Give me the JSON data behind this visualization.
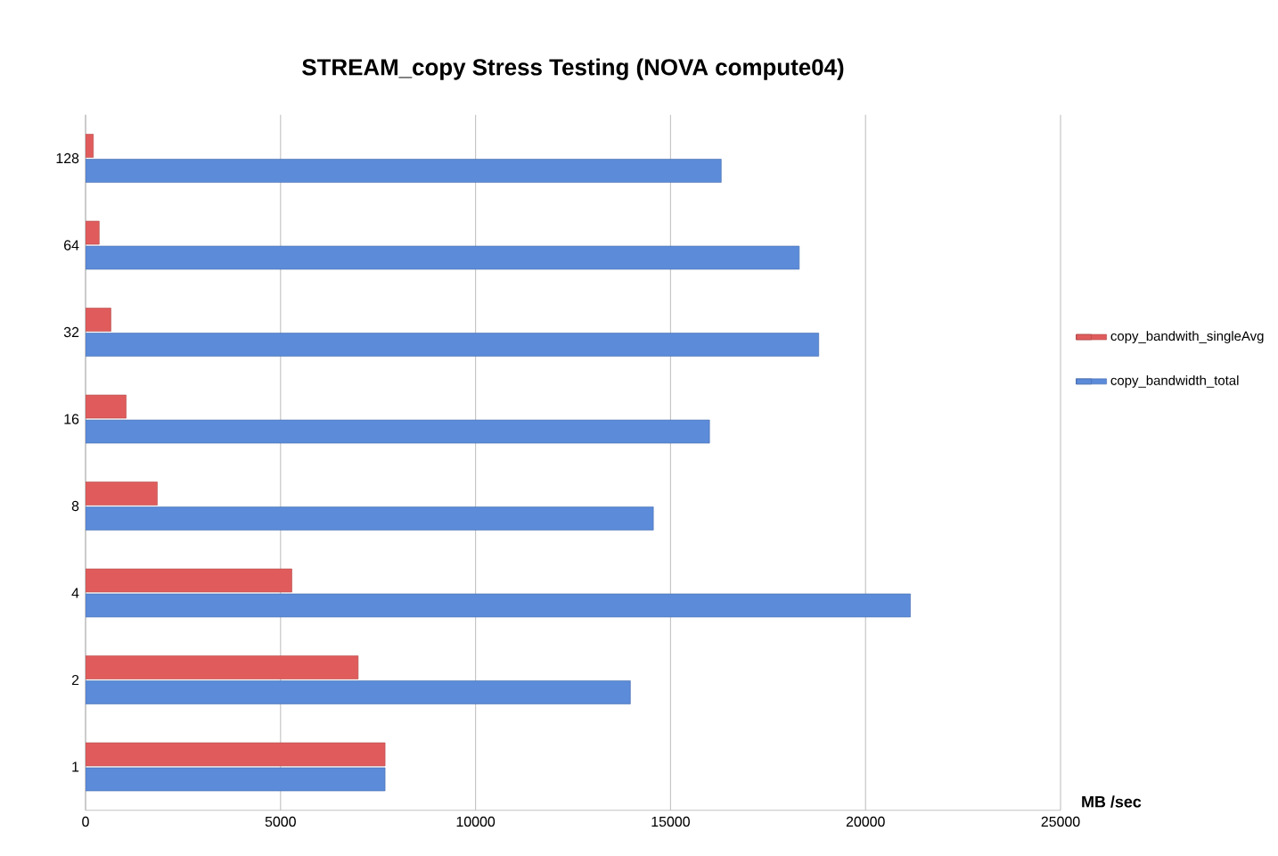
{
  "chart_data": {
    "type": "bar",
    "orientation": "horizontal",
    "title": "STREAM_copy Stress Testing (NOVA compute04)",
    "xlabel": "MB /sec",
    "categories": [
      "128",
      "64",
      "32",
      "16",
      "8",
      "4",
      "2",
      "1"
    ],
    "series": [
      {
        "name": "copy_bandwith_singleAvg",
        "color": "#e05c5c",
        "values": [
          200,
          350,
          650,
          1040,
          1840,
          5290,
          6990,
          7680
        ]
      },
      {
        "name": "copy_bandwidth_total",
        "color": "#5b8bd9",
        "values": [
          16300,
          18300,
          18800,
          16000,
          14560,
          21150,
          13970,
          7680
        ]
      }
    ],
    "xlim": [
      0,
      25000
    ],
    "xticks": [
      0,
      5000,
      10000,
      15000,
      20000,
      25000
    ],
    "grid": "x",
    "legend": "right"
  }
}
